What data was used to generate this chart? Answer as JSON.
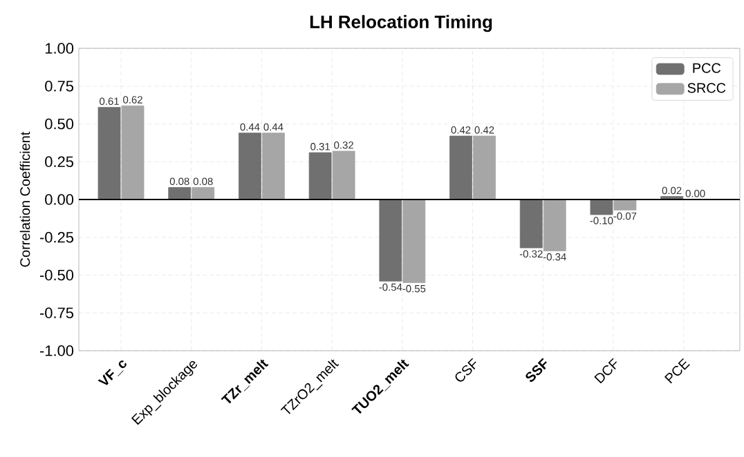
{
  "chart_data": {
    "type": "bar",
    "title": "LH Relocation Timing",
    "ylabel": "Correlation Coefficient",
    "categories": [
      "**VF_c**",
      "Exp_blockage",
      "**TZr_melt**",
      "TZrO2_melt",
      "**TUO2_melt**",
      "CSF",
      "**SSF**",
      "DCF",
      "PCE"
    ],
    "series": [
      {
        "name": "PCC",
        "color": "#707070",
        "values": [
          0.61,
          0.08,
          0.44,
          0.31,
          -0.54,
          0.42,
          -0.32,
          -0.1,
          0.02
        ],
        "value_labels": [
          "0.61",
          "0.08",
          "0.44",
          "0.31",
          "-0.54",
          "0.42",
          "-0.32",
          "-0.10",
          "0.02"
        ]
      },
      {
        "name": "SRCC",
        "color": "#a6a6a6",
        "values": [
          0.62,
          0.08,
          0.44,
          0.32,
          -0.55,
          0.42,
          -0.34,
          -0.07,
          0.0
        ],
        "value_labels": [
          "0.62",
          "0.08",
          "0.44",
          "0.32",
          "-0.55",
          "0.42",
          "-0.34",
          "-0.07",
          "0.00"
        ]
      }
    ],
    "ylim": [
      -1.0,
      1.0
    ],
    "yticks": [
      {
        "value": -1.0,
        "label": "-1.00"
      },
      {
        "value": -0.75,
        "label": "-0.75"
      },
      {
        "value": -0.5,
        "label": "-0.50"
      },
      {
        "value": -0.25,
        "label": "-0.25"
      },
      {
        "value": 0,
        "label": "0.00"
      },
      {
        "value": 0.25,
        "label": "0.25"
      },
      {
        "value": 0.5,
        "label": "0.50"
      },
      {
        "value": 0.75,
        "label": "0.75"
      },
      {
        "value": 1.0,
        "label": "1.00"
      }
    ],
    "ref_lines": [
      {
        "axis": "y",
        "value": 0,
        "color": "#000000"
      }
    ],
    "grid": true,
    "legend": "top right"
  }
}
